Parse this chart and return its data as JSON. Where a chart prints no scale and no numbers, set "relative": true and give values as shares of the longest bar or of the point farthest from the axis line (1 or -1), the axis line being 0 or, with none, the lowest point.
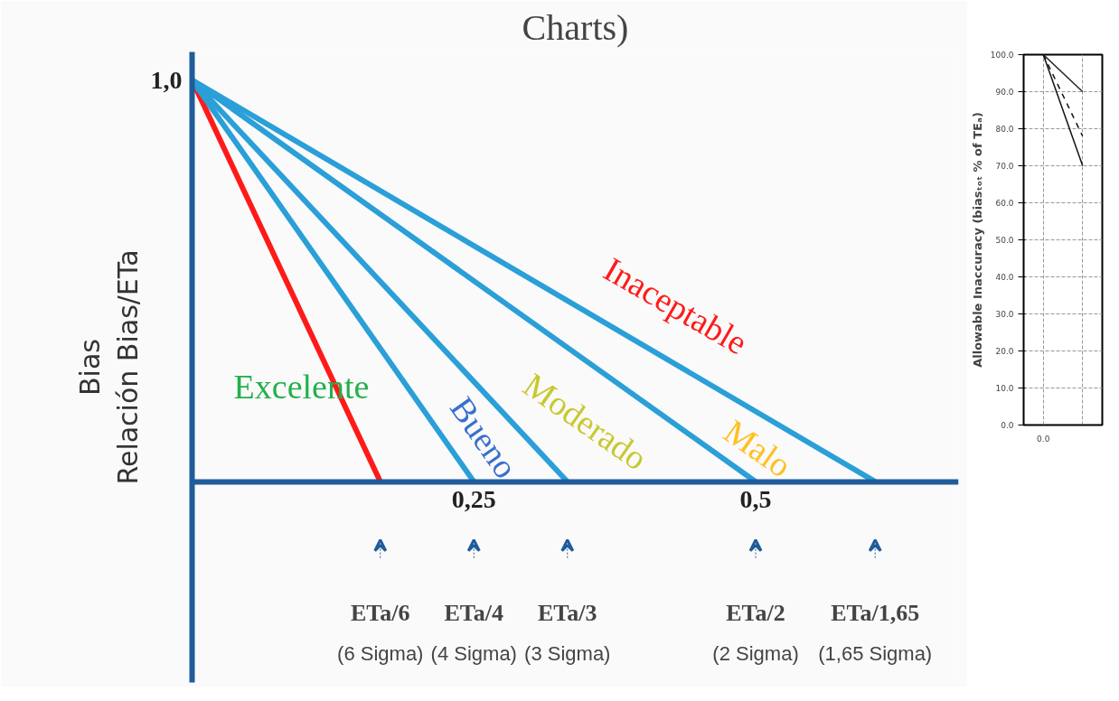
{
  "chart_data": [
    {
      "type": "line",
      "title": "Charts)",
      "ylabel": "Bias\nRelación Bias/ETa",
      "relative": true,
      "xlim": [
        0,
        0.68
      ],
      "xticks": [
        {
          "value": 0.25,
          "label": "0,25"
        },
        {
          "value": 0.5,
          "label": "0,5"
        }
      ],
      "grid": false,
      "marker": "none",
      "line_style": "solid",
      "series": [
        {
          "color": "#ff1a1a",
          "x": [
            0,
            0.167
          ],
          "values": [
            1,
            0
          ]
        },
        {
          "color": "#2a9fd8",
          "x": [
            0,
            0.25
          ],
          "values": [
            1,
            0
          ]
        },
        {
          "color": "#2a9fd8",
          "x": [
            0,
            0.333
          ],
          "values": [
            1,
            0
          ]
        },
        {
          "color": "#2a9fd8",
          "x": [
            0,
            0.5
          ],
          "values": [
            1,
            0
          ]
        },
        {
          "color": "#2a9fd8",
          "x": [
            0,
            0.606
          ],
          "values": [
            1,
            0
          ]
        }
      ],
      "annotations": [
        "1,0",
        "Excelente",
        "Bueno",
        "Moderado",
        "Malo",
        "Inaceptable",
        "ETa/6\n(6 Sigma)",
        "ETa/4\n(4 Sigma)",
        "ETa/3\n(3 Sigma)",
        "ETa/2\n(2 Sigma)",
        "ETa/1,65\n(1,65 Sigma)"
      ]
    },
    {
      "type": "line",
      "ylabel": "Allowable Inaccuracy (biasₜₒₜ % of TEₐ)",
      "categories": [
        "0.0",
        null
      ],
      "ylim": [
        0,
        100
      ],
      "yticks": [
        {
          "value": 0,
          "label": "0.0"
        },
        {
          "value": 10,
          "label": "10.0"
        },
        {
          "value": 20,
          "label": "20.0"
        },
        {
          "value": 30,
          "label": "30.0"
        },
        {
          "value": 40,
          "label": "40.0"
        },
        {
          "value": 50,
          "label": "50.0"
        },
        {
          "value": 60,
          "label": "60.0"
        },
        {
          "value": 70,
          "label": "70.0"
        },
        {
          "value": 80,
          "label": "80.0"
        },
        {
          "value": 90,
          "label": "90.0"
        },
        {
          "value": 100,
          "label": "100.0"
        }
      ],
      "grid": true,
      "marker": "none",
      "series": [
        {
          "color": "#222222",
          "line_style": "solid",
          "values": [
            100,
            90
          ]
        },
        {
          "color": "#111111",
          "line_style": "solid",
          "values": [
            100,
            70
          ]
        },
        {
          "color": "#111111",
          "line_style": "dashed",
          "values": [
            100,
            78
          ]
        }
      ]
    }
  ]
}
